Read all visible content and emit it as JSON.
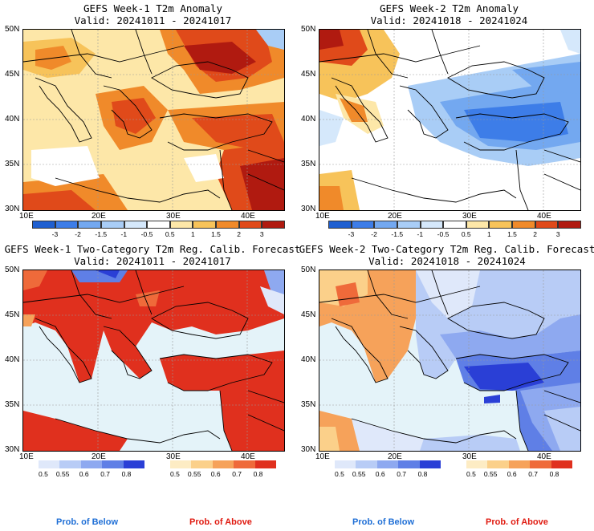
{
  "panels": [
    {
      "id": "p1",
      "title1": "GEFS Week-1 T2m Anomaly",
      "title2": "Valid: 20241011 - 20241017"
    },
    {
      "id": "p2",
      "title1": "GEFS Week-2 T2m Anomaly",
      "title2": "Valid: 20241018 - 20241024"
    },
    {
      "id": "p3",
      "title1": "GEFS Week-1 Two-Category T2m Reg. Calib. Forecast",
      "title2": "Valid: 20241011 - 20241017"
    },
    {
      "id": "p4",
      "title1": "GEFS Week-2 Two-Category T2m Reg. Calib. Forecast",
      "title2": "Valid: 20241018 - 20241024"
    }
  ],
  "lat_labels": [
    "50N",
    "45N",
    "40N",
    "35N",
    "30N"
  ],
  "lon_labels": [
    "10E",
    "20E",
    "30E",
    "40E"
  ],
  "anomaly_colorbar": {
    "labels": [
      "-3",
      "-2",
      "-1.5",
      "-1",
      "-0.5",
      "0.5",
      "1",
      "1.5",
      "2",
      "3"
    ],
    "colors": [
      "#1f5fd0",
      "#3d7de8",
      "#73a8f0",
      "#a9cdf6",
      "#d5e8fb",
      "#ffffff",
      "#fde7a8",
      "#f7c35a",
      "#f08a2a",
      "#e04a1a",
      "#b01a10"
    ]
  },
  "prob_colorbar_below": {
    "labels": [
      "0.5",
      "0.55",
      "0.6",
      "0.7",
      "0.8"
    ],
    "colors": [
      "#dfe8fa",
      "#b8ccf6",
      "#8ea9f0",
      "#5f7fe6",
      "#2a3fd6"
    ]
  },
  "prob_colorbar_above": {
    "labels": [
      "0.5",
      "0.55",
      "0.6",
      "0.7",
      "0.8"
    ],
    "colors": [
      "#fdecc4",
      "#fbd08a",
      "#f6a25a",
      "#ef6a3a",
      "#e0301e"
    ]
  },
  "prob_labels": {
    "below": "Prob. of Below",
    "above": "Prob. of Above",
    "below_color": "#1f6fd6",
    "above_color": "#e01a10"
  }
}
